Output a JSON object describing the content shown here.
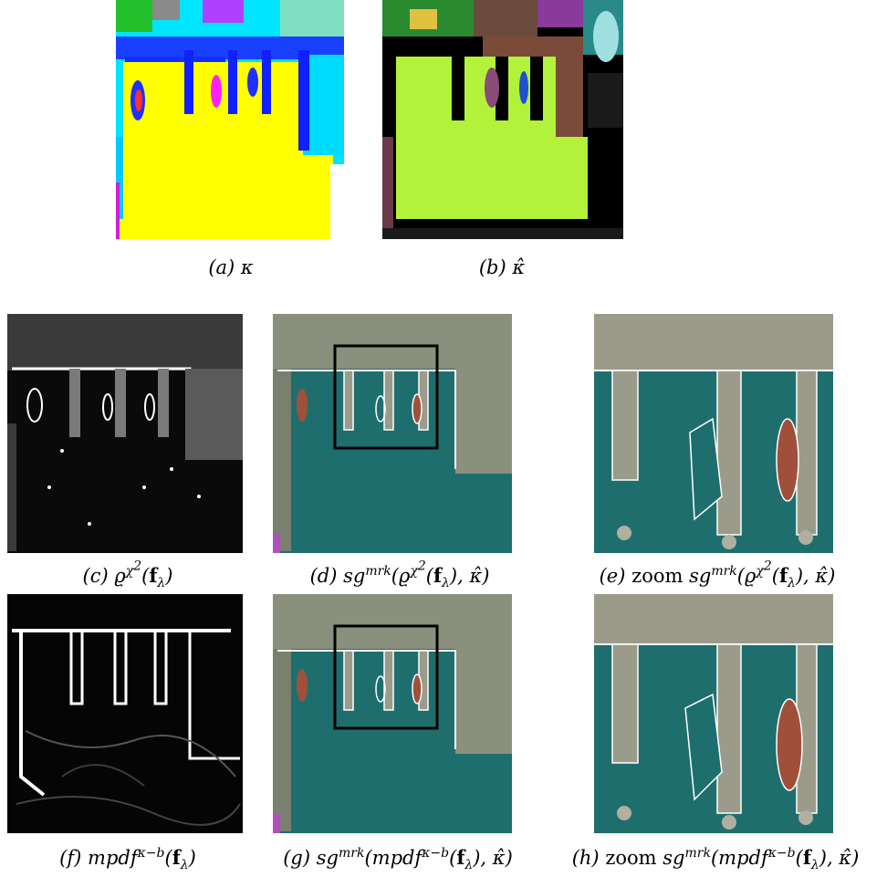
{
  "figure": {
    "panels": [
      {
        "id": "a",
        "label": "(a)",
        "symbol": "κ"
      },
      {
        "id": "b",
        "label": "(b)",
        "symbol": "κ̂"
      },
      {
        "id": "c",
        "label": "(c)",
        "expr_fn": "ϱ",
        "expr_sup": "χ",
        "expr_sup2": "2",
        "arg": "f",
        "arg_sub": "λ"
      },
      {
        "id": "d",
        "label": "(d)",
        "fn": "sg",
        "fn_sup": "mrk",
        "inner": "ϱ",
        "inner_sup": "χ",
        "inner_sup2": "2",
        "arg": "f",
        "arg_sub": "λ",
        "second": "κ̂"
      },
      {
        "id": "e",
        "label": "(e)",
        "prefix": "zoom",
        "fn": "sg",
        "fn_sup": "mrk",
        "inner": "ϱ",
        "inner_sup": "χ",
        "inner_sup2": "2",
        "arg": "f",
        "arg_sub": "λ",
        "second": "κ̂"
      },
      {
        "id": "f",
        "label": "(f)",
        "fn": "mpdf",
        "fn_sup": "κ−b",
        "arg": "f",
        "arg_sub": "λ"
      },
      {
        "id": "g",
        "label": "(g)",
        "fn": "sg",
        "fn_sup": "mrk",
        "inner": "mpdf",
        "inner_sup": "κ−b",
        "arg": "f",
        "arg_sub": "λ",
        "second": "κ̂"
      },
      {
        "id": "h",
        "label": "(h)",
        "prefix": "zoom",
        "fn": "sg",
        "fn_sup": "mrk",
        "inner": "mpdf",
        "inner_sup": "κ−b",
        "arg": "f",
        "arg_sub": "λ",
        "second": "κ̂"
      }
    ],
    "colors": {
      "water": "#1f6e6e",
      "land": "#9a9b8a",
      "boundary": "#ffffff",
      "ship": "#a0503a",
      "kappa_water": "#ffff00",
      "kappa_blue": "#1020ff",
      "kappa_cyan": "#00e5ff",
      "kappahat_water": "#b2f23a",
      "kappahat_brown": "#7a4a3a"
    }
  }
}
